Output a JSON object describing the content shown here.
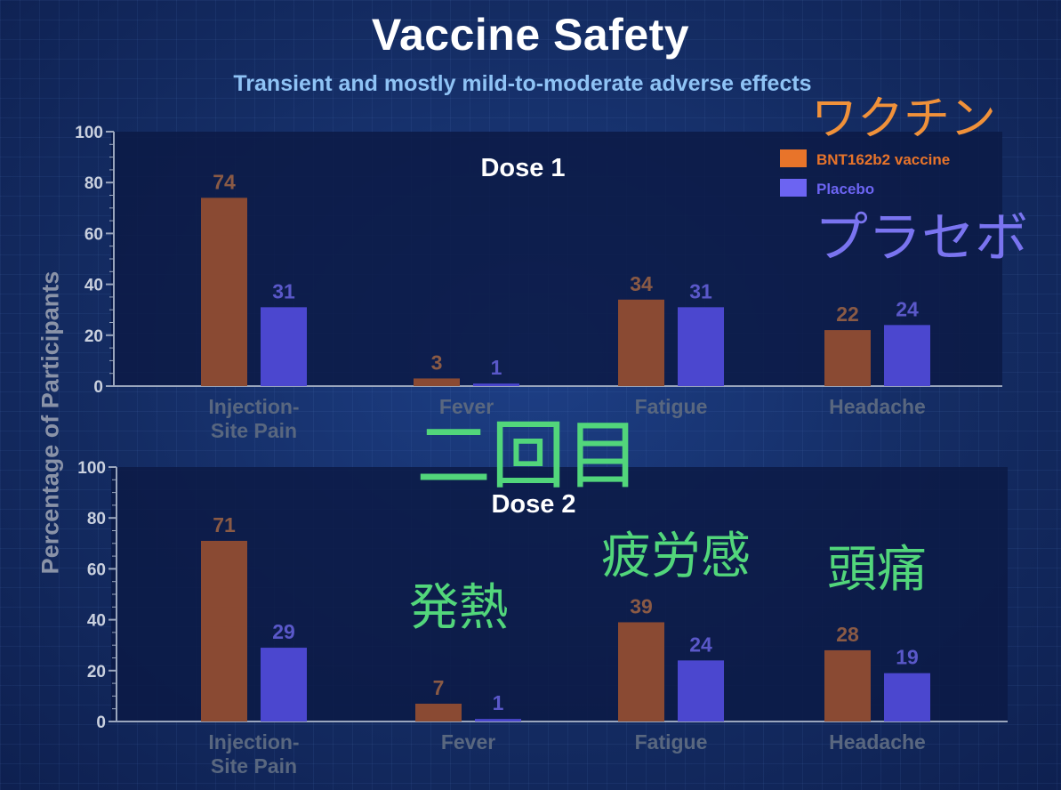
{
  "title": "Vaccine Safety",
  "subtitle": "Transient and mostly mild-to-moderate adverse effects",
  "ylabel": "Percentage of Participants",
  "colors": {
    "vaccine": "#8a4a33",
    "placebo": "#4b47cf",
    "vaccine_label": "#8a5a45",
    "placebo_label": "#5a58c9",
    "legend_vaccine": "#e8742a",
    "legend_placebo": "#6c64f2"
  },
  "legend": [
    {
      "name": "BNT162b2 vaccine",
      "color": "#e8742a"
    },
    {
      "name": "Placebo",
      "color": "#6c64f2"
    }
  ],
  "annotations": {
    "vaccine_jp": "ワクチン",
    "placebo_jp": "プラセボ",
    "dose2_jp": "二回目",
    "fever_jp": "発熱",
    "fatigue_jp": "疲労感",
    "headache_jp": "頭痛"
  },
  "chart_data": [
    {
      "type": "bar",
      "title": "Dose 1",
      "ylabel": "Percentage of Participants",
      "ylim": [
        0,
        100
      ],
      "yticks": [
        0,
        20,
        40,
        60,
        80,
        100
      ],
      "categories": [
        "Injection-\nSite Pain",
        "Fever",
        "Fatigue",
        "Headache"
      ],
      "series": [
        {
          "name": "BNT162b2 vaccine",
          "values": [
            74,
            3,
            34,
            22
          ]
        },
        {
          "name": "Placebo",
          "values": [
            31,
            1,
            31,
            24
          ]
        }
      ],
      "legend": "top-right"
    },
    {
      "type": "bar",
      "title": "Dose 2",
      "ylabel": "Percentage of Participants",
      "ylim": [
        0,
        100
      ],
      "yticks": [
        0,
        20,
        40,
        60,
        80,
        100
      ],
      "categories": [
        "Injection-\nSite Pain",
        "Fever",
        "Fatigue",
        "Headache"
      ],
      "series": [
        {
          "name": "BNT162b2 vaccine",
          "values": [
            71,
            7,
            39,
            28
          ]
        },
        {
          "name": "Placebo",
          "values": [
            29,
            1,
            24,
            19
          ]
        }
      ]
    }
  ]
}
